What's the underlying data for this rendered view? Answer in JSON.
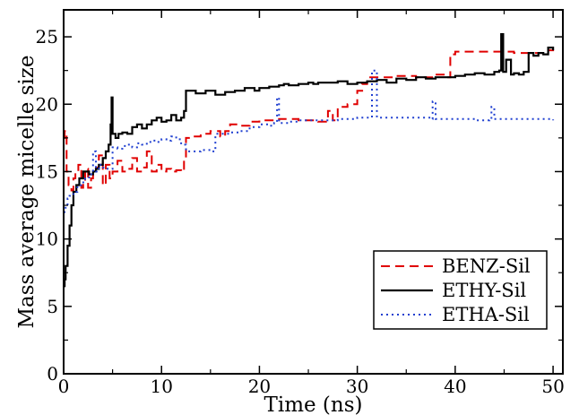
{
  "chart_data": {
    "type": "line",
    "title": "",
    "xlabel": "Time (ns)",
    "ylabel": "Mass average micelle size",
    "xlim": [
      0,
      51
    ],
    "ylim": [
      0,
      27
    ],
    "xticks": [
      0,
      10,
      20,
      30,
      40,
      50
    ],
    "yticks": [
      0,
      5,
      10,
      15,
      20,
      25
    ],
    "xtick_labels": [
      "0",
      "10",
      "20",
      "30",
      "40",
      "50"
    ],
    "ytick_labels": [
      "0",
      "5",
      "10",
      "15",
      "20",
      "25"
    ],
    "grid": false,
    "legend_position": "lower-right",
    "series": [
      {
        "name": "BENZ-Sil",
        "color": "#e00000",
        "dash": "dashed",
        "x": [
          0,
          0.1,
          0.3,
          0.5,
          0.8,
          1.0,
          1.2,
          1.5,
          1.8,
          2.0,
          2.2,
          2.5,
          2.8,
          3.0,
          3.3,
          3.6,
          4.0,
          4.3,
          4.7,
          5.0,
          5.5,
          6.0,
          6.5,
          7.0,
          7.5,
          8.0,
          8.5,
          9.0,
          9.5,
          10.0,
          10.5,
          11.0,
          11.5,
          12.0,
          12.3,
          12.5,
          13.0,
          14.0,
          15.0,
          16.0,
          16.5,
          17.0,
          18.0,
          19.0,
          20.0,
          22.0,
          24.0,
          26.0,
          27.0,
          27.5,
          28.0,
          29.0,
          30.0,
          30.5,
          31.0,
          31.5,
          32.0,
          34.0,
          36.0,
          38.0,
          39.0,
          39.5,
          40.0,
          42.0,
          44.0,
          46.0,
          48.0,
          49.0,
          49.5,
          50.0
        ],
        "y": [
          17.5,
          18.0,
          15.0,
          14.0,
          13.6,
          14.5,
          15.0,
          15.5,
          13.8,
          14.2,
          15.2,
          13.8,
          14.5,
          15.0,
          15.3,
          16.2,
          14.0,
          15.5,
          14.5,
          15.0,
          15.8,
          15.0,
          15.2,
          16.0,
          15.0,
          15.3,
          16.5,
          15.0,
          15.5,
          15.0,
          15.2,
          15.0,
          15.1,
          15.0,
          16.0,
          17.5,
          17.6,
          17.8,
          18.0,
          17.6,
          18.0,
          18.5,
          18.4,
          18.7,
          18.8,
          18.9,
          18.8,
          18.7,
          19.5,
          18.8,
          19.8,
          20.0,
          21.0,
          21.5,
          22.0,
          22.0,
          22.0,
          22.1,
          22.0,
          22.2,
          22.0,
          23.7,
          23.9,
          23.9,
          23.9,
          23.8,
          23.8,
          23.8,
          24.0,
          24.1
        ]
      },
      {
        "name": "ETHY-Sil",
        "color": "#000000",
        "dash": "solid",
        "x": [
          0,
          0.1,
          0.2,
          0.4,
          0.6,
          0.8,
          1.0,
          1.3,
          1.6,
          2.0,
          2.3,
          2.6,
          3.0,
          3.3,
          3.6,
          4.0,
          4.3,
          4.6,
          4.8,
          4.9,
          5.0,
          5.3,
          5.6,
          6.0,
          6.5,
          7.0,
          7.5,
          8.0,
          8.5,
          9.0,
          9.5,
          10.0,
          10.5,
          11.0,
          11.5,
          12.0,
          12.3,
          12.5,
          12.8,
          13.5,
          14.5,
          15.5,
          16.5,
          17.5,
          18.5,
          19.5,
          20.0,
          21.0,
          22.0,
          22.5,
          23.0,
          24.0,
          25.0,
          25.5,
          26.0,
          27.0,
          28.0,
          29.0,
          30.0,
          31.0,
          32.0,
          33.0,
          34.0,
          35.0,
          36.0,
          37.0,
          38.0,
          39.0,
          40.0,
          41.0,
          42.0,
          43.0,
          44.0,
          44.5,
          44.7,
          44.9,
          45.2,
          45.7,
          46.0,
          46.5,
          47.0,
          47.5,
          48.0,
          48.5,
          49.0,
          49.5,
          50.0
        ],
        "y": [
          6.5,
          7.0,
          8.0,
          9.5,
          11.0,
          12.5,
          13.5,
          14.0,
          14.5,
          15.0,
          15.0,
          14.8,
          15.0,
          15.2,
          15.5,
          16.0,
          16.5,
          17.0,
          18.5,
          20.5,
          17.8,
          17.5,
          17.8,
          17.9,
          17.8,
          18.3,
          18.5,
          18.2,
          18.5,
          18.8,
          19.0,
          18.7,
          18.8,
          19.2,
          18.8,
          19.0,
          19.5,
          21.0,
          21.0,
          20.8,
          21.0,
          20.7,
          20.9,
          21.0,
          21.2,
          21.0,
          21.2,
          21.3,
          21.4,
          21.5,
          21.4,
          21.5,
          21.6,
          21.5,
          21.6,
          21.6,
          21.7,
          21.5,
          21.6,
          21.7,
          21.8,
          21.6,
          21.9,
          21.8,
          22.0,
          21.9,
          22.0,
          22.0,
          22.1,
          22.2,
          22.3,
          22.2,
          22.4,
          22.5,
          25.2,
          22.4,
          23.3,
          22.2,
          22.3,
          22.2,
          22.4,
          23.8,
          23.6,
          23.8,
          23.7,
          24.2,
          24.0
        ]
      },
      {
        "name": "ETHA-Sil",
        "color": "#1f3fd0",
        "dash": "dotted",
        "x": [
          0,
          0.2,
          0.4,
          0.6,
          1.0,
          1.4,
          1.8,
          2.2,
          2.6,
          3.0,
          3.3,
          3.6,
          4.0,
          4.5,
          5.0,
          5.5,
          6.0,
          6.5,
          7.0,
          7.5,
          8.0,
          8.5,
          9.0,
          9.5,
          10.0,
          10.5,
          11.0,
          11.5,
          12.0,
          12.5,
          13.0,
          14.0,
          15.0,
          15.5,
          16.0,
          17.0,
          18.0,
          19.0,
          20.0,
          21.0,
          21.5,
          21.8,
          22.0,
          23.0,
          24.0,
          25.0,
          26.0,
          28.0,
          30.0,
          31.0,
          31.5,
          32.0,
          34.0,
          36.0,
          37.5,
          37.7,
          38.0,
          40.0,
          42.0,
          43.5,
          43.7,
          44.0,
          46.0,
          48.0,
          50.0
        ],
        "y": [
          12.0,
          12.5,
          13.0,
          13.2,
          13.5,
          14.0,
          14.2,
          14.5,
          14.8,
          16.5,
          15.0,
          15.5,
          15.3,
          15.2,
          16.8,
          16.7,
          16.9,
          17.0,
          16.8,
          17.1,
          17.0,
          17.2,
          17.3,
          17.2,
          17.4,
          17.3,
          17.6,
          17.4,
          17.0,
          16.5,
          16.5,
          16.6,
          16.5,
          17.8,
          17.8,
          17.9,
          18.0,
          18.3,
          18.5,
          18.4,
          18.6,
          20.5,
          18.6,
          18.7,
          18.8,
          18.8,
          18.8,
          18.9,
          19.0,
          19.0,
          22.5,
          19.0,
          19.0,
          19.0,
          18.9,
          20.2,
          18.9,
          18.9,
          18.8,
          18.9,
          19.8,
          18.9,
          18.9,
          18.9,
          18.8
        ]
      }
    ]
  }
}
